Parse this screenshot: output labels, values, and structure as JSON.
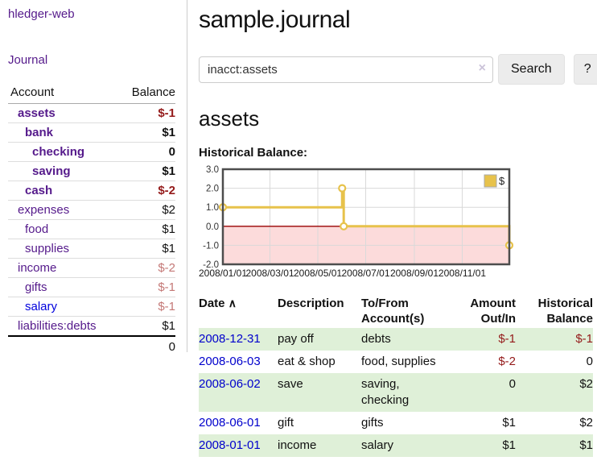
{
  "colors": {
    "link_purple": "#551a8b",
    "link_blue": "#0000dd",
    "date_link_blue": "#0000cc",
    "negative_strong": "#941a1a",
    "negative_soft": "#c47876",
    "row_green": "#dff0d8"
  },
  "sidebar": {
    "app_title": "hledger-web",
    "journal_link": "Journal",
    "accounts_header": {
      "account": "Account",
      "balance": "Balance"
    },
    "accounts": [
      {
        "name": "assets",
        "balance": "$-1",
        "level": 1,
        "bold": true,
        "negative": "strong"
      },
      {
        "name": "bank",
        "balance": "$1",
        "level": 2,
        "bold": true,
        "negative": "none"
      },
      {
        "name": "checking",
        "balance": "0",
        "level": 3,
        "bold": true,
        "negative": "none"
      },
      {
        "name": "saving",
        "balance": "$1",
        "level": 3,
        "bold": true,
        "negative": "none"
      },
      {
        "name": "cash",
        "balance": "$-2",
        "level": 2,
        "bold": true,
        "negative": "strong"
      },
      {
        "name": "expenses",
        "balance": "$2",
        "level": 1,
        "bold": false,
        "negative": "none"
      },
      {
        "name": "food",
        "balance": "$1",
        "level": 2,
        "bold": false,
        "negative": "none"
      },
      {
        "name": "supplies",
        "balance": "$1",
        "level": 2,
        "bold": false,
        "negative": "none"
      },
      {
        "name": "income",
        "balance": "$-2",
        "level": 1,
        "bold": false,
        "negative": "soft"
      },
      {
        "name": "gifts",
        "balance": "$-1",
        "level": 2,
        "bold": false,
        "negative": "soft"
      },
      {
        "name": "salary",
        "balance": "$-1",
        "level": 2,
        "bold": false,
        "negative": "soft",
        "link_style": "unvisited"
      },
      {
        "name": "liabilities:debts",
        "balance": "$1",
        "level": 1,
        "bold": false,
        "negative": "none"
      }
    ],
    "total": "0"
  },
  "header": {
    "title": "sample.journal",
    "search": {
      "value": "inacct:assets",
      "clear_icon": "×",
      "search_button": "Search",
      "help_button": "?"
    }
  },
  "register": {
    "heading": "assets",
    "chart_label": "Historical Balance:",
    "table": {
      "headers": {
        "date": "Date",
        "description": "Description",
        "accounts": "To/From Account(s)",
        "amount": "Amount Out/In",
        "balance": "Historical Balance"
      },
      "sort_icon": "∧",
      "transactions": [
        {
          "date": "2008-12-31",
          "description": "pay off",
          "accounts": "debts",
          "amount": "$-1",
          "balance": "$-1"
        },
        {
          "date": "2008-06-03",
          "description": "eat & shop",
          "accounts": "food, supplies",
          "amount": "$-2",
          "balance": "0"
        },
        {
          "date": "2008-06-02",
          "description": "save",
          "accounts": "saving, checking",
          "amount": "0",
          "balance": "$2"
        },
        {
          "date": "2008-06-01",
          "description": "gift",
          "accounts": "gifts",
          "amount": "$1",
          "balance": "$2"
        },
        {
          "date": "2008-01-01",
          "description": "income",
          "accounts": "salary",
          "amount": "$1",
          "balance": "$1"
        }
      ]
    }
  },
  "chart_data": {
    "type": "line",
    "step": true,
    "title": "Historical Balance:",
    "series": [
      {
        "name": "$",
        "points": [
          [
            "2008-01-01",
            1.0
          ],
          [
            "2008-06-01",
            2.0
          ],
          [
            "2008-06-03",
            0.0
          ],
          [
            "2008-12-31",
            -1.0
          ]
        ]
      }
    ],
    "x_ticks": [
      "2008/01/01",
      "2008/03/01",
      "2008/05/01",
      "2008/07/01",
      "2008/09/01",
      "2008/11/01"
    ],
    "y_ticks": [
      3.0,
      2.0,
      1.0,
      0.0,
      -1.0,
      -2.0
    ],
    "ylim": [
      -2.0,
      3.0
    ],
    "x_range": [
      "2008-01-01",
      "2008-12-31"
    ],
    "grid": true,
    "legend": {
      "label": "$",
      "position": "top-right"
    },
    "colors": {
      "line": "#e7c24b",
      "marker_fill": "#ffffff",
      "negative_area": "#fcdbdb",
      "zero_line": "#990000",
      "grid": "#d9d9d9",
      "border": "#4d4d4d"
    }
  }
}
